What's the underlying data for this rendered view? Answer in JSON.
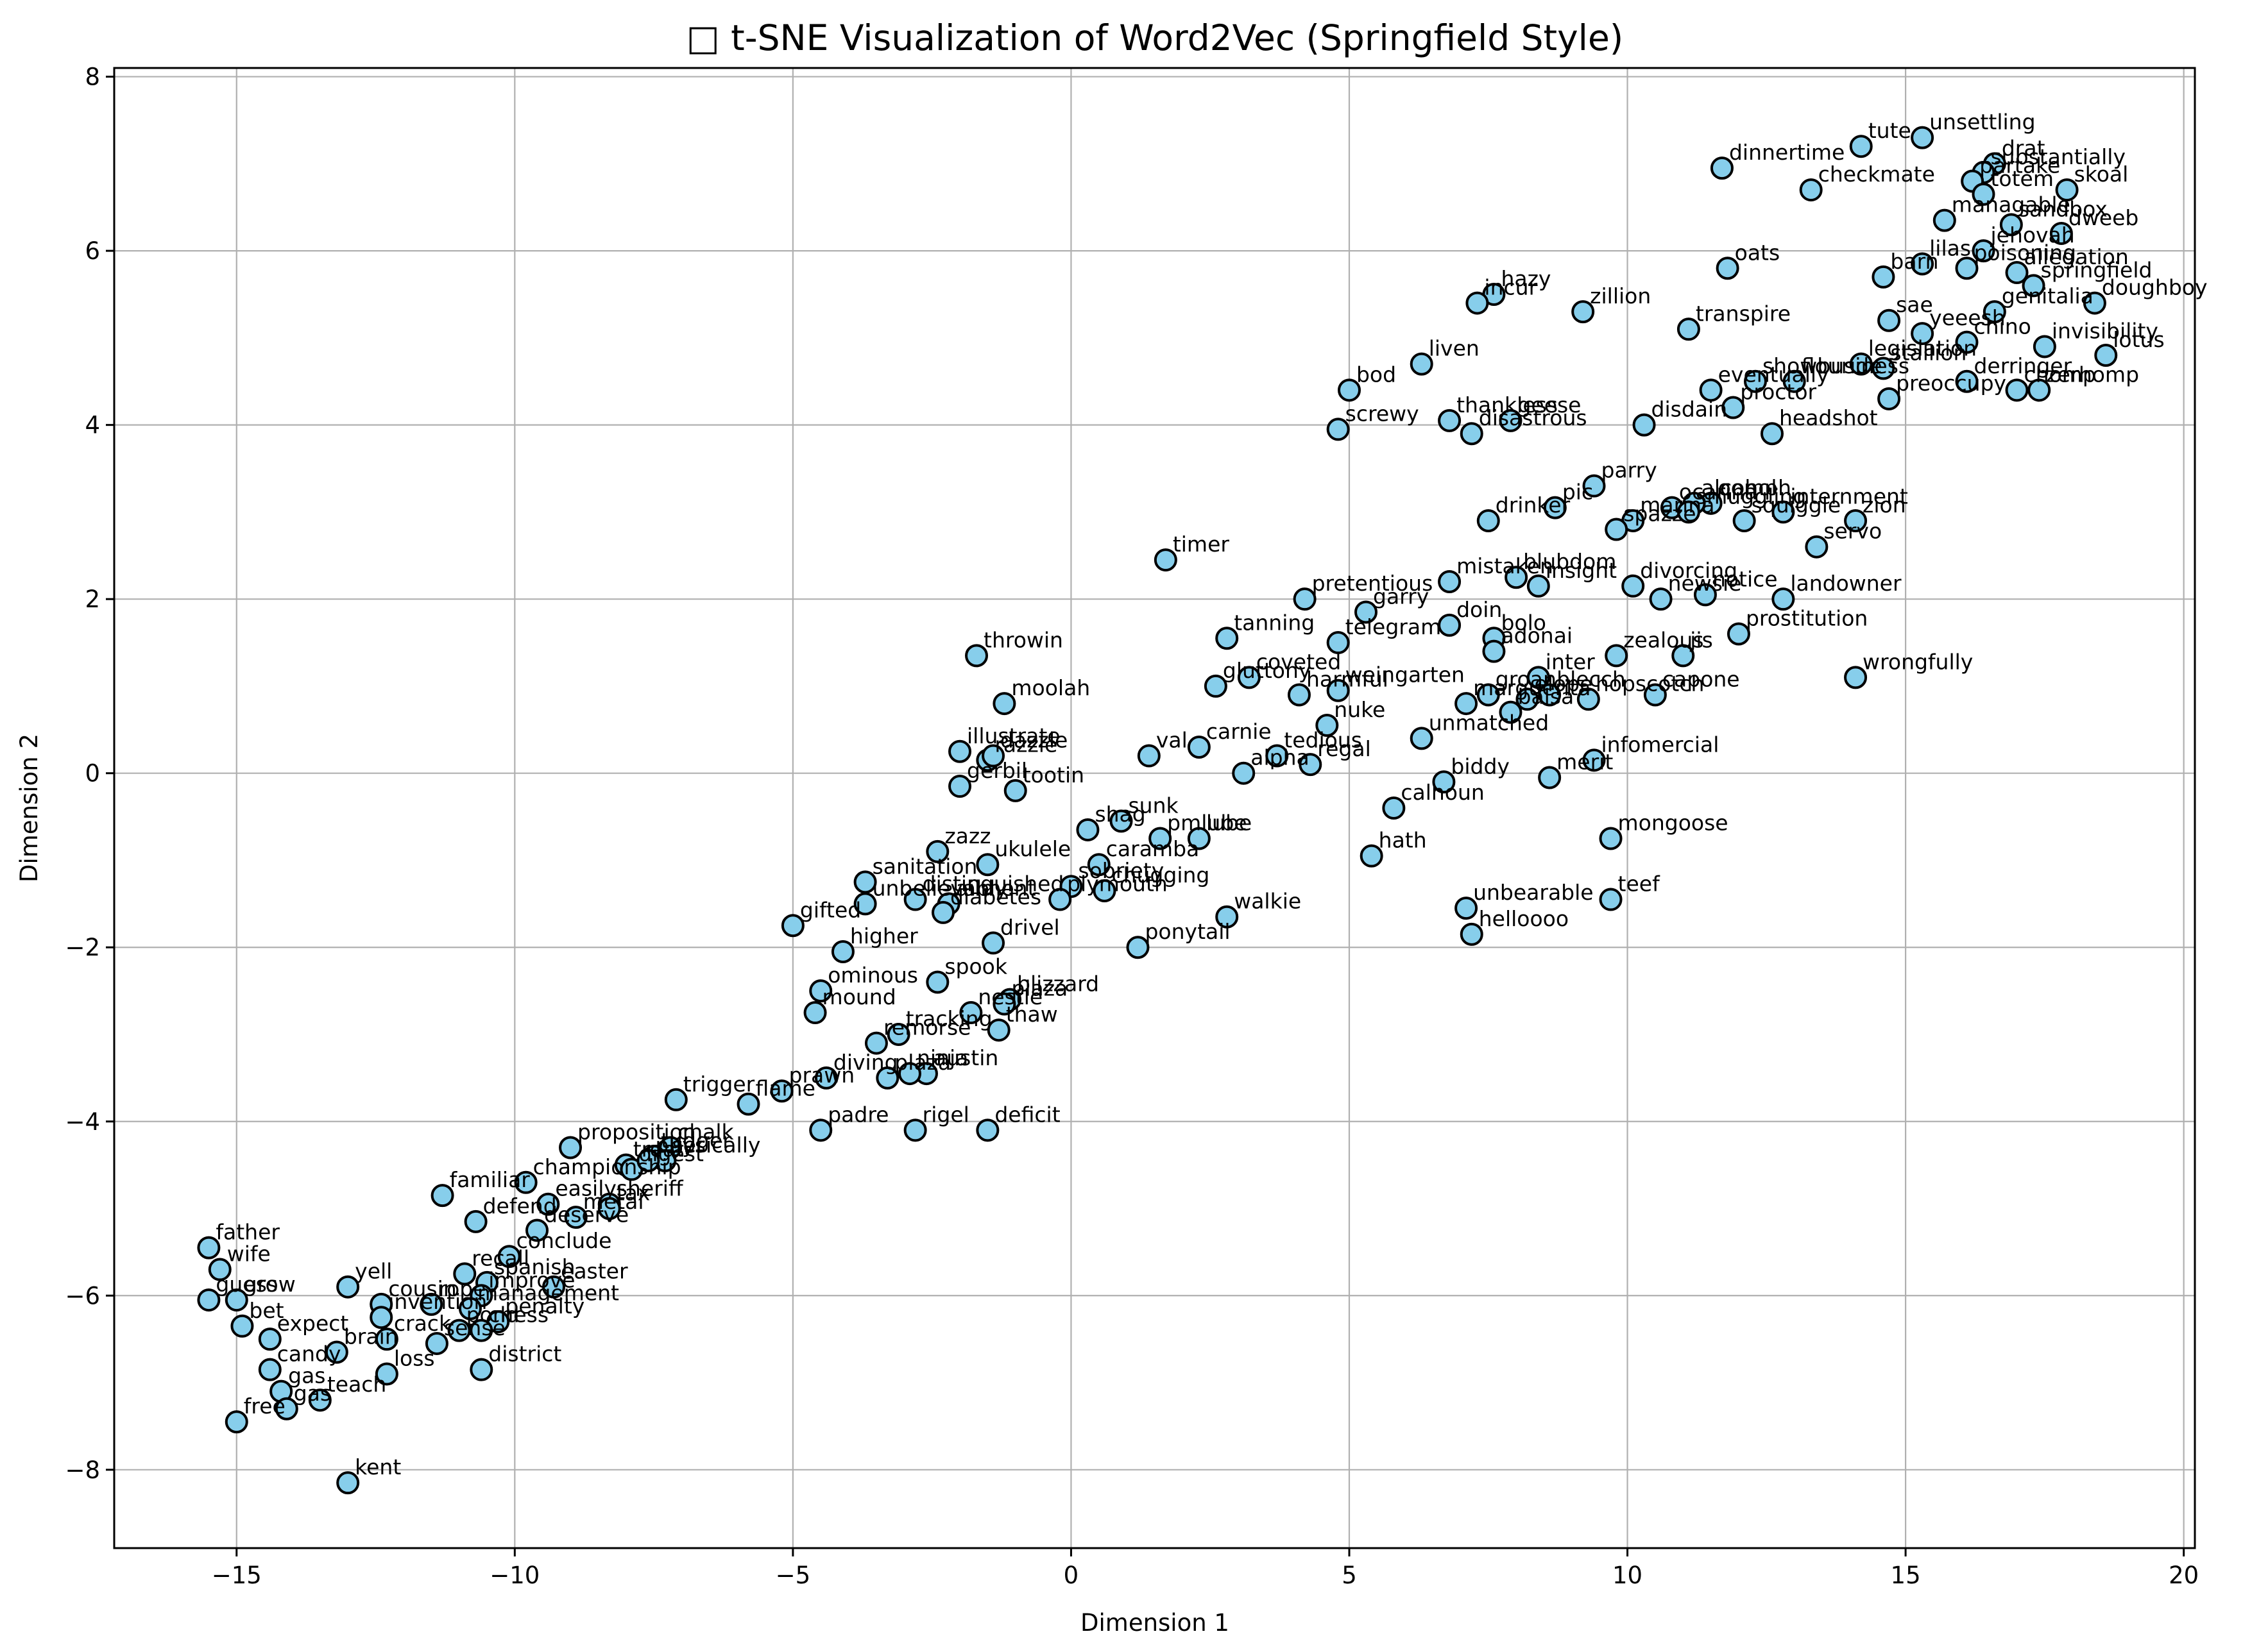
{
  "chart_data": {
    "type": "scatter",
    "title": "□ t-SNE Visualization of Word2Vec (Springfield Style)",
    "xlabel": "Dimension 1",
    "ylabel": "Dimension 2",
    "xlim": [
      -17.2,
      20.2
    ],
    "ylim": [
      -8.9,
      8.1
    ],
    "xticks": [
      -15,
      -10,
      -5,
      0,
      5,
      10,
      15,
      20
    ],
    "yticks": [
      -8,
      -6,
      -4,
      -2,
      0,
      2,
      4,
      6,
      8
    ],
    "xtick_labels": [
      "−15",
      "−10",
      "−5",
      "0",
      "5",
      "10",
      "15",
      "20"
    ],
    "ytick_labels": [
      "−8",
      "−6",
      "−4",
      "−2",
      "0",
      "2",
      "4",
      "6",
      "8"
    ],
    "grid": true,
    "marker_color": "#87ceeb",
    "edge_color": "#000000",
    "points": [
      {
        "label": "tute",
        "x": 14.2,
        "y": 7.2
      },
      {
        "label": "unsettling",
        "x": 15.3,
        "y": 7.3
      },
      {
        "label": "drat",
        "x": 16.6,
        "y": 7.0
      },
      {
        "label": "substantially",
        "x": 16.4,
        "y": 6.9
      },
      {
        "label": "partake",
        "x": 16.2,
        "y": 6.8
      },
      {
        "label": "dinnertime",
        "x": 11.7,
        "y": 6.95
      },
      {
        "label": "checkmate",
        "x": 13.3,
        "y": 6.7
      },
      {
        "label": "totem",
        "x": 16.4,
        "y": 6.65
      },
      {
        "label": "skoal",
        "x": 17.9,
        "y": 6.7
      },
      {
        "label": "managable",
        "x": 15.7,
        "y": 6.35
      },
      {
        "label": "sandbox",
        "x": 16.9,
        "y": 6.3
      },
      {
        "label": "dweeb",
        "x": 17.8,
        "y": 6.2
      },
      {
        "label": "jehovah",
        "x": 16.4,
        "y": 6.0
      },
      {
        "label": "lilas",
        "x": 15.3,
        "y": 5.85
      },
      {
        "label": "poisoning",
        "x": 16.1,
        "y": 5.8
      },
      {
        "label": "oats",
        "x": 11.8,
        "y": 5.8
      },
      {
        "label": "barn",
        "x": 14.6,
        "y": 5.7
      },
      {
        "label": "allegation",
        "x": 17.0,
        "y": 5.75
      },
      {
        "label": "springfield",
        "x": 17.3,
        "y": 5.6
      },
      {
        "label": "doughboy",
        "x": 18.4,
        "y": 5.4
      },
      {
        "label": "hazy",
        "x": 7.6,
        "y": 5.5
      },
      {
        "label": "incur",
        "x": 7.3,
        "y": 5.4
      },
      {
        "label": "zillion",
        "x": 9.2,
        "y": 5.3
      },
      {
        "label": "sae",
        "x": 14.7,
        "y": 5.2
      },
      {
        "label": "genitalia",
        "x": 16.6,
        "y": 5.3
      },
      {
        "label": "transpire",
        "x": 11.1,
        "y": 5.1
      },
      {
        "label": "yeeesh",
        "x": 15.3,
        "y": 5.05
      },
      {
        "label": "chino",
        "x": 16.1,
        "y": 4.95
      },
      {
        "label": "invisibility",
        "x": 17.5,
        "y": 4.9
      },
      {
        "label": "lotus",
        "x": 18.6,
        "y": 4.8
      },
      {
        "label": "legislation",
        "x": 14.2,
        "y": 4.7
      },
      {
        "label": "stallion",
        "x": 14.6,
        "y": 4.65
      },
      {
        "label": "liven",
        "x": 6.3,
        "y": 4.7
      },
      {
        "label": "eventually",
        "x": 11.5,
        "y": 4.4
      },
      {
        "label": "showbusiness",
        "x": 12.3,
        "y": 4.5
      },
      {
        "label": "flouride",
        "x": 13.0,
        "y": 4.5
      },
      {
        "label": "bod",
        "x": 5.0,
        "y": 4.4
      },
      {
        "label": "derringer",
        "x": 16.1,
        "y": 4.5
      },
      {
        "label": "chomp",
        "x": 17.0,
        "y": 4.4
      },
      {
        "label": "zerhomp",
        "x": 17.4,
        "y": 4.4
      },
      {
        "label": "preoccupy",
        "x": 14.7,
        "y": 4.3
      },
      {
        "label": "proctor",
        "x": 11.9,
        "y": 4.2
      },
      {
        "label": "thankless",
        "x": 6.8,
        "y": 4.05
      },
      {
        "label": "geese",
        "x": 7.9,
        "y": 4.05
      },
      {
        "label": "disastrous",
        "x": 7.2,
        "y": 3.9
      },
      {
        "label": "screwy",
        "x": 4.8,
        "y": 3.95
      },
      {
        "label": "disdain",
        "x": 10.3,
        "y": 4.0
      },
      {
        "label": "headshot",
        "x": 12.6,
        "y": 3.9
      },
      {
        "label": "parry",
        "x": 9.4,
        "y": 3.3
      },
      {
        "label": "ocarina",
        "x": 10.8,
        "y": 3.05
      },
      {
        "label": "oomph",
        "x": 11.5,
        "y": 3.1
      },
      {
        "label": "alcohol",
        "x": 11.2,
        "y": 3.1
      },
      {
        "label": "internment",
        "x": 12.8,
        "y": 3.0
      },
      {
        "label": "pic",
        "x": 8.7,
        "y": 3.05
      },
      {
        "label": "drinker",
        "x": 7.5,
        "y": 2.9
      },
      {
        "label": "marina",
        "x": 10.1,
        "y": 2.9
      },
      {
        "label": "smuggling",
        "x": 11.1,
        "y": 3.0
      },
      {
        "label": "zion",
        "x": 14.1,
        "y": 2.9
      },
      {
        "label": "squiggle",
        "x": 12.1,
        "y": 2.9
      },
      {
        "label": "spazze",
        "x": 9.8,
        "y": 2.8
      },
      {
        "label": "servo",
        "x": 13.4,
        "y": 2.6
      },
      {
        "label": "timer",
        "x": 1.7,
        "y": 2.45
      },
      {
        "label": "mistaken",
        "x": 6.8,
        "y": 2.2
      },
      {
        "label": "blubdom",
        "x": 8.0,
        "y": 2.25
      },
      {
        "label": "insight",
        "x": 8.4,
        "y": 2.15
      },
      {
        "label": "pretentious",
        "x": 4.2,
        "y": 2.0
      },
      {
        "label": "divorcing",
        "x": 10.1,
        "y": 2.15
      },
      {
        "label": "newsie",
        "x": 10.6,
        "y": 2.0
      },
      {
        "label": "notice",
        "x": 11.4,
        "y": 2.05
      },
      {
        "label": "landowner",
        "x": 12.8,
        "y": 2.0
      },
      {
        "label": "garry",
        "x": 5.3,
        "y": 1.85
      },
      {
        "label": "doin",
        "x": 6.8,
        "y": 1.7
      },
      {
        "label": "prostitution",
        "x": 12.0,
        "y": 1.6
      },
      {
        "label": "tanning",
        "x": 2.8,
        "y": 1.55
      },
      {
        "label": "telegram",
        "x": 4.8,
        "y": 1.5
      },
      {
        "label": "bolo",
        "x": 7.6,
        "y": 1.55
      },
      {
        "label": "adonai",
        "x": 7.6,
        "y": 1.4
      },
      {
        "label": "zealous",
        "x": 9.8,
        "y": 1.35
      },
      {
        "label": "jis",
        "x": 11.0,
        "y": 1.35
      },
      {
        "label": "throwin",
        "x": -1.7,
        "y": 1.35
      },
      {
        "label": "coveted",
        "x": 3.2,
        "y": 1.1
      },
      {
        "label": "inter",
        "x": 8.4,
        "y": 1.1
      },
      {
        "label": "gluttony",
        "x": 2.6,
        "y": 1.0
      },
      {
        "label": "harmful",
        "x": 4.1,
        "y": 0.9
      },
      {
        "label": "weingarten",
        "x": 4.8,
        "y": 0.95
      },
      {
        "label": "groan",
        "x": 7.5,
        "y": 0.9
      },
      {
        "label": "blecch",
        "x": 8.6,
        "y": 0.9
      },
      {
        "label": "capone",
        "x": 10.5,
        "y": 0.9
      },
      {
        "label": "marguerita",
        "x": 7.1,
        "y": 0.8
      },
      {
        "label": "elope",
        "x": 8.2,
        "y": 0.85
      },
      {
        "label": "hopscotch",
        "x": 9.3,
        "y": 0.85
      },
      {
        "label": "wrongfully",
        "x": 14.1,
        "y": 1.1
      },
      {
        "label": "moolah",
        "x": -1.2,
        "y": 0.8
      },
      {
        "label": "nuke",
        "x": 4.6,
        "y": 0.55
      },
      {
        "label": "balsa",
        "x": 7.9,
        "y": 0.7
      },
      {
        "label": "unmatched",
        "x": 6.3,
        "y": 0.4
      },
      {
        "label": "illustrate",
        "x": -2.0,
        "y": 0.25
      },
      {
        "label": "razzle",
        "x": -1.5,
        "y": 0.15
      },
      {
        "label": "dazzle",
        "x": -1.4,
        "y": 0.2
      },
      {
        "label": "val",
        "x": 1.4,
        "y": 0.2
      },
      {
        "label": "carnie",
        "x": 2.3,
        "y": 0.3
      },
      {
        "label": "tedious",
        "x": 3.7,
        "y": 0.2
      },
      {
        "label": "regal",
        "x": 4.3,
        "y": 0.1
      },
      {
        "label": "infomercial",
        "x": 9.4,
        "y": 0.15
      },
      {
        "label": "gerbil",
        "x": -2.0,
        "y": -0.15
      },
      {
        "label": "tootin",
        "x": -1.0,
        "y": -0.2
      },
      {
        "label": "alpha",
        "x": 3.1,
        "y": 0.0
      },
      {
        "label": "biddy",
        "x": 6.7,
        "y": -0.1
      },
      {
        "label": "merit",
        "x": 8.6,
        "y": -0.05
      },
      {
        "label": "calhoun",
        "x": 5.8,
        "y": -0.4
      },
      {
        "label": "sunk",
        "x": 0.9,
        "y": -0.55
      },
      {
        "label": "shag",
        "x": 0.3,
        "y": -0.65
      },
      {
        "label": "pmlube",
        "x": 1.6,
        "y": -0.75
      },
      {
        "label": "lube",
        "x": 2.3,
        "y": -0.75
      },
      {
        "label": "mongoose",
        "x": 9.7,
        "y": -0.75
      },
      {
        "label": "zazz",
        "x": -2.4,
        "y": -0.9
      },
      {
        "label": "hath",
        "x": 5.4,
        "y": -0.95
      },
      {
        "label": "caramba",
        "x": 0.5,
        "y": -1.05
      },
      {
        "label": "ukulele",
        "x": -1.5,
        "y": -1.05
      },
      {
        "label": "sobriety",
        "x": 0.0,
        "y": -1.3
      },
      {
        "label": "sanitation",
        "x": -3.7,
        "y": -1.25
      },
      {
        "label": "unbelievably",
        "x": -3.7,
        "y": -1.5
      },
      {
        "label": "distinguished",
        "x": -2.8,
        "y": -1.45
      },
      {
        "label": "ailment",
        "x": -2.2,
        "y": -1.5
      },
      {
        "label": "chugging",
        "x": 0.6,
        "y": -1.35
      },
      {
        "label": "plymouth",
        "x": -0.2,
        "y": -1.45
      },
      {
        "label": "diabetes",
        "x": -2.3,
        "y": -1.6
      },
      {
        "label": "teef",
        "x": 9.7,
        "y": -1.45
      },
      {
        "label": "unbearable",
        "x": 7.1,
        "y": -1.55
      },
      {
        "label": "walkie",
        "x": 2.8,
        "y": -1.65
      },
      {
        "label": "gifted",
        "x": -5.0,
        "y": -1.75
      },
      {
        "label": "helloooo",
        "x": 7.2,
        "y": -1.85
      },
      {
        "label": "drivel",
        "x": -1.4,
        "y": -1.95
      },
      {
        "label": "ponytail",
        "x": 1.2,
        "y": -2.0
      },
      {
        "label": "higher",
        "x": -4.1,
        "y": -2.05
      },
      {
        "label": "spook",
        "x": -2.4,
        "y": -2.4
      },
      {
        "label": "ominous",
        "x": -4.5,
        "y": -2.5
      },
      {
        "label": "blizzard",
        "x": -1.1,
        "y": -2.6
      },
      {
        "label": "plaza",
        "x": -1.2,
        "y": -2.65
      },
      {
        "label": "nestle",
        "x": -1.8,
        "y": -2.75
      },
      {
        "label": "mound",
        "x": -4.6,
        "y": -2.75
      },
      {
        "label": "thaw",
        "x": -1.3,
        "y": -2.95
      },
      {
        "label": "tracking",
        "x": -3.1,
        "y": -3.0
      },
      {
        "label": "remorse",
        "x": -3.5,
        "y": -3.1
      },
      {
        "label": "austin",
        "x": -2.6,
        "y": -3.45
      },
      {
        "label": "diving",
        "x": -4.4,
        "y": -3.5
      },
      {
        "label": "plaza",
        "x": -3.3,
        "y": -3.5
      },
      {
        "label": "ninja",
        "x": -2.9,
        "y": -3.45
      },
      {
        "label": "prawn",
        "x": -5.2,
        "y": -3.65
      },
      {
        "label": "flame",
        "x": -5.8,
        "y": -3.8
      },
      {
        "label": "trigger",
        "x": -7.1,
        "y": -3.75
      },
      {
        "label": "padre",
        "x": -4.5,
        "y": -4.1
      },
      {
        "label": "rigel",
        "x": -2.8,
        "y": -4.1
      },
      {
        "label": "deficit",
        "x": -1.5,
        "y": -4.1
      },
      {
        "label": "proposition",
        "x": -9.0,
        "y": -4.3
      },
      {
        "label": "chalk",
        "x": -7.2,
        "y": -4.3
      },
      {
        "label": "tugger",
        "x": -7.5,
        "y": -4.4
      },
      {
        "label": "ser",
        "x": -7.3,
        "y": -4.45
      },
      {
        "label": "treat",
        "x": -8.0,
        "y": -4.5
      },
      {
        "label": "digest",
        "x": -7.9,
        "y": -4.55
      },
      {
        "label": "physically",
        "x": -7.6,
        "y": -4.45
      },
      {
        "label": "championship",
        "x": -9.8,
        "y": -4.7
      },
      {
        "label": "familiar",
        "x": -11.3,
        "y": -4.85
      },
      {
        "label": "easily",
        "x": -9.4,
        "y": -4.95
      },
      {
        "label": "sheriff",
        "x": -8.3,
        "y": -4.95
      },
      {
        "label": "defend",
        "x": -10.7,
        "y": -5.15
      },
      {
        "label": "tax",
        "x": -8.3,
        "y": -5.0
      },
      {
        "label": "metal",
        "x": -8.9,
        "y": -5.1
      },
      {
        "label": "deserve",
        "x": -9.6,
        "y": -5.25
      },
      {
        "label": "father",
        "x": -15.5,
        "y": -5.45
      },
      {
        "label": "conclude",
        "x": -10.1,
        "y": -5.55
      },
      {
        "label": "wife",
        "x": -15.3,
        "y": -5.7
      },
      {
        "label": "recall",
        "x": -10.9,
        "y": -5.75
      },
      {
        "label": "spanish",
        "x": -10.5,
        "y": -5.85
      },
      {
        "label": "easter",
        "x": -9.3,
        "y": -5.9
      },
      {
        "label": "yell",
        "x": -13.0,
        "y": -5.9
      },
      {
        "label": "cousin",
        "x": -12.4,
        "y": -6.1
      },
      {
        "label": "improve",
        "x": -10.6,
        "y": -6.0
      },
      {
        "label": "guess",
        "x": -15.5,
        "y": -6.05
      },
      {
        "label": "grow",
        "x": -15.0,
        "y": -6.05
      },
      {
        "label": "rope",
        "x": -11.5,
        "y": -6.1
      },
      {
        "label": "management",
        "x": -10.8,
        "y": -6.15
      },
      {
        "label": "bet",
        "x": -14.9,
        "y": -6.35
      },
      {
        "label": "penalty",
        "x": -10.3,
        "y": -6.3
      },
      {
        "label": "invention",
        "x": -12.4,
        "y": -6.25
      },
      {
        "label": "pond",
        "x": -11.0,
        "y": -6.4
      },
      {
        "label": "chess",
        "x": -10.6,
        "y": -6.4
      },
      {
        "label": "expect",
        "x": -14.4,
        "y": -6.5
      },
      {
        "label": "crack",
        "x": -12.3,
        "y": -6.5
      },
      {
        "label": "sense",
        "x": -11.4,
        "y": -6.55
      },
      {
        "label": "brain",
        "x": -13.2,
        "y": -6.65
      },
      {
        "label": "loss",
        "x": -12.3,
        "y": -6.9
      },
      {
        "label": "district",
        "x": -10.6,
        "y": -6.85
      },
      {
        "label": "candy",
        "x": -14.4,
        "y": -6.85
      },
      {
        "label": "teach",
        "x": -13.5,
        "y": -7.2
      },
      {
        "label": "gas",
        "x": -14.2,
        "y": -7.1
      },
      {
        "label": "gas",
        "x": -14.1,
        "y": -7.3
      },
      {
        "label": "free",
        "x": -15.0,
        "y": -7.45
      },
      {
        "label": "kent",
        "x": -13.0,
        "y": -8.15
      }
    ]
  }
}
